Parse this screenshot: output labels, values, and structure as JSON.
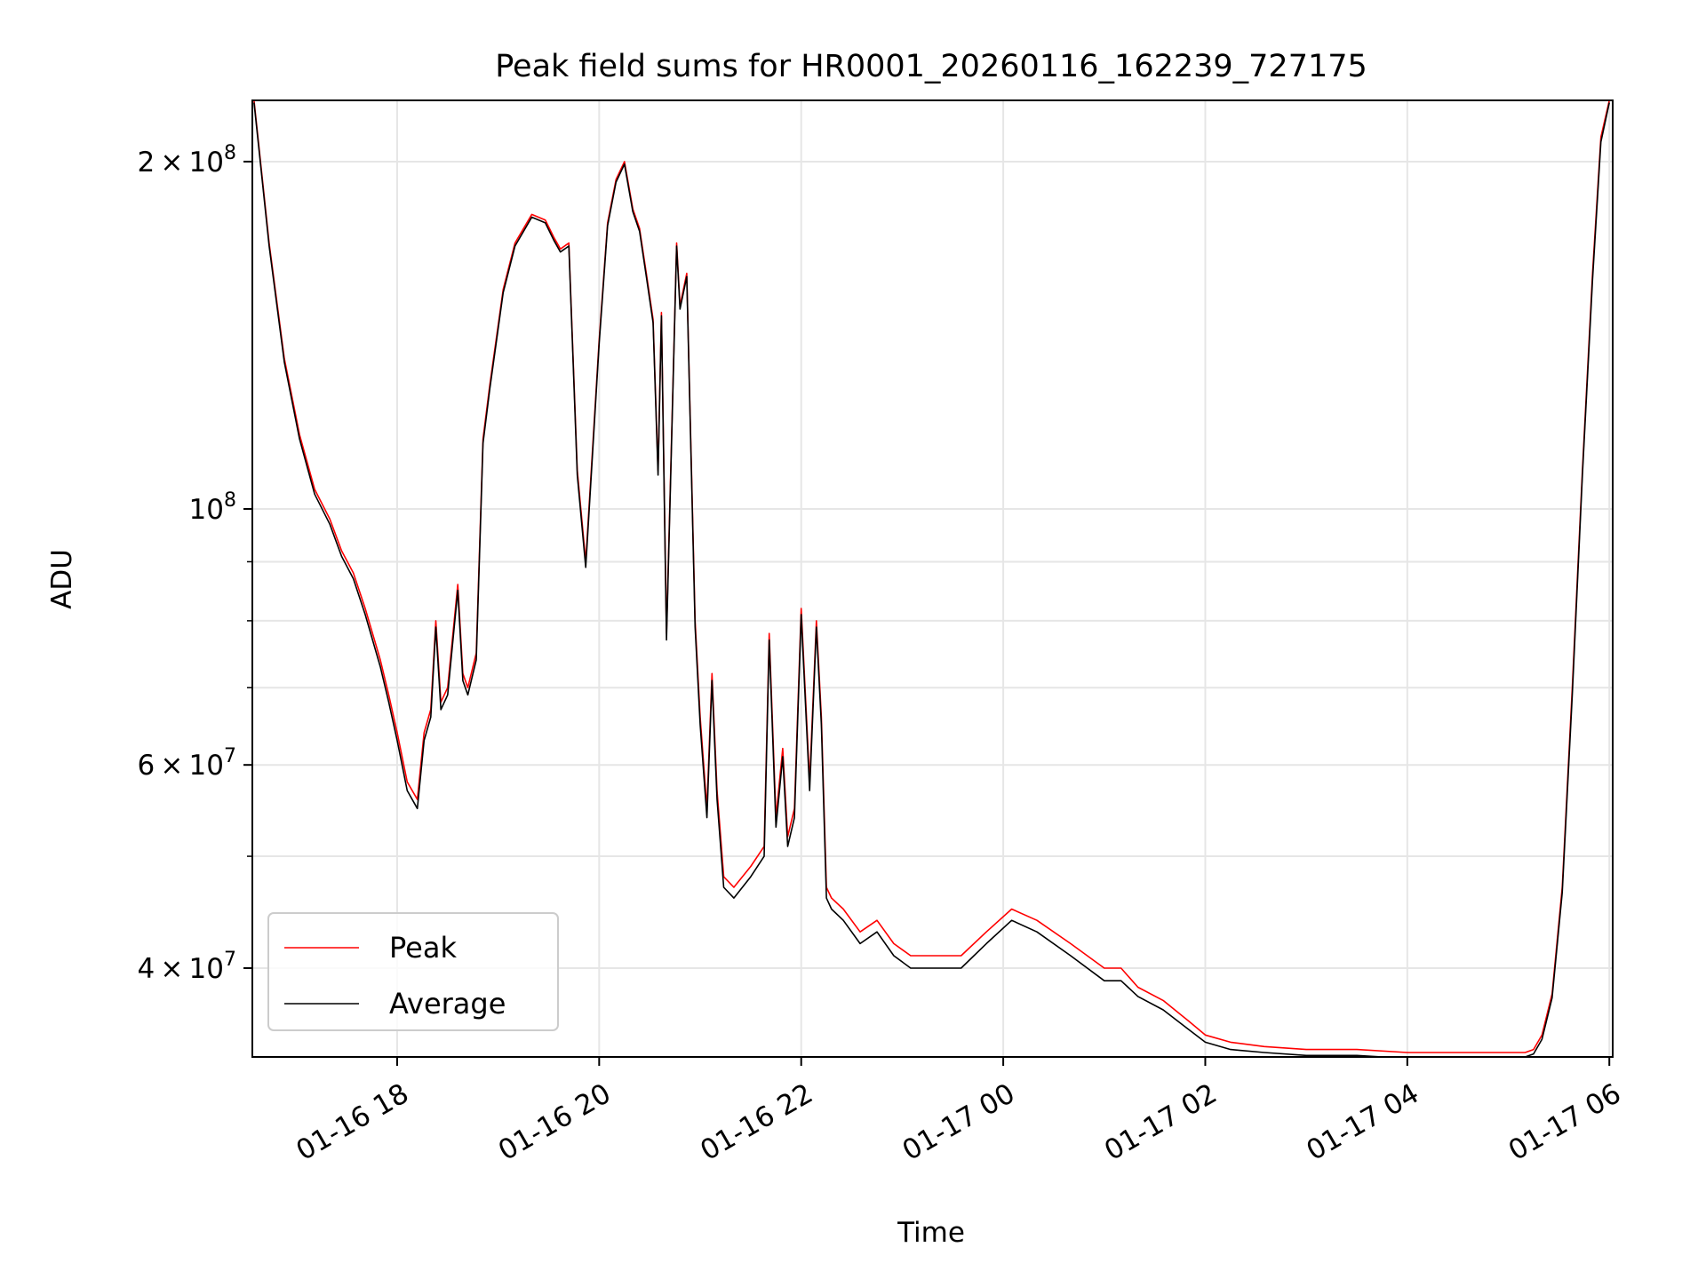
{
  "chart_data": {
    "type": "line",
    "title": "Peak field sums for HR0001_20260116_162239_727175",
    "xlabel": "Time",
    "ylabel": "ADU",
    "y_scale": "log",
    "grid": true,
    "legend_position": "lower-left",
    "xlim": [
      "2026-01-16 16:34",
      "2026-01-17 06:02"
    ],
    "ylim": [
      33500000,
      226000000
    ],
    "x_ticks": [
      "01-16 18",
      "01-16 20",
      "01-16 22",
      "01-17 00",
      "01-17 02",
      "01-17 04",
      "01-17 06"
    ],
    "x_tick_values": [
      "2026-01-16 18:00",
      "2026-01-16 20:00",
      "2026-01-16 22:00",
      "2026-01-17 00:00",
      "2026-01-17 02:00",
      "2026-01-17 04:00",
      "2026-01-17 06:00"
    ],
    "y_ticks": [
      {
        "value": 40000000,
        "mantissa": "4",
        "exp": "7"
      },
      {
        "value": 60000000,
        "mantissa": "6",
        "exp": "7"
      },
      {
        "value": 100000000,
        "mantissa": "",
        "exp": "8"
      },
      {
        "value": 200000000,
        "mantissa": "2",
        "exp": "8"
      }
    ],
    "y_minor_ticks": [
      50000000,
      70000000,
      80000000,
      90000000
    ],
    "series": [
      {
        "name": "Peak",
        "color": "#ff0000",
        "x": [
          "2026-01-16 16:35",
          "2026-01-16 16:44",
          "2026-01-16 16:53",
          "2026-01-16 17:02",
          "2026-01-16 17:11",
          "2026-01-16 17:20",
          "2026-01-16 17:27",
          "2026-01-16 17:34",
          "2026-01-16 17:41",
          "2026-01-16 17:50",
          "2026-01-16 17:55",
          "2026-01-16 18:00",
          "2026-01-16 18:06",
          "2026-01-16 18:12",
          "2026-01-16 18:16",
          "2026-01-16 18:20",
          "2026-01-16 18:23",
          "2026-01-16 18:26",
          "2026-01-16 18:30",
          "2026-01-16 18:36",
          "2026-01-16 18:39",
          "2026-01-16 18:42",
          "2026-01-16 18:47",
          "2026-01-16 18:51",
          "2026-01-16 18:55",
          "2026-01-16 19:03",
          "2026-01-16 19:10",
          "2026-01-16 19:20",
          "2026-01-16 19:28",
          "2026-01-16 19:33",
          "2026-01-16 19:37",
          "2026-01-16 19:42",
          "2026-01-16 19:47",
          "2026-01-16 19:52",
          "2026-01-16 20:00",
          "2026-01-16 20:05",
          "2026-01-16 20:10",
          "2026-01-16 20:15",
          "2026-01-16 20:20",
          "2026-01-16 20:24",
          "2026-01-16 20:28",
          "2026-01-16 20:32",
          "2026-01-16 20:35",
          "2026-01-16 20:37",
          "2026-01-16 20:40",
          "2026-01-16 20:46",
          "2026-01-16 20:48",
          "2026-01-16 20:52",
          "2026-01-16 20:57",
          "2026-01-16 21:00",
          "2026-01-16 21:04",
          "2026-01-16 21:07",
          "2026-01-16 21:10",
          "2026-01-16 21:14",
          "2026-01-16 21:20",
          "2026-01-16 21:30",
          "2026-01-16 21:38",
          "2026-01-16 21:41",
          "2026-01-16 21:45",
          "2026-01-16 21:49",
          "2026-01-16 21:52",
          "2026-01-16 21:56",
          "2026-01-16 22:00",
          "2026-01-16 22:05",
          "2026-01-16 22:09",
          "2026-01-16 22:12",
          "2026-01-16 22:15",
          "2026-01-16 22:18",
          "2026-01-16 22:25",
          "2026-01-16 22:35",
          "2026-01-16 22:45",
          "2026-01-16 22:55",
          "2026-01-16 23:05",
          "2026-01-16 23:20",
          "2026-01-16 23:35",
          "2026-01-16 23:50",
          "2026-01-17 00:05",
          "2026-01-17 00:20",
          "2026-01-17 00:40",
          "2026-01-17 01:00",
          "2026-01-17 01:10",
          "2026-01-17 01:20",
          "2026-01-17 01:35",
          "2026-01-17 01:50",
          "2026-01-17 02:00",
          "2026-01-17 02:15",
          "2026-01-17 02:35",
          "2026-01-17 03:00",
          "2026-01-17 03:30",
          "2026-01-17 04:00",
          "2026-01-17 04:30",
          "2026-01-17 05:00",
          "2026-01-17 05:10",
          "2026-01-17 05:15",
          "2026-01-17 05:20",
          "2026-01-17 05:26",
          "2026-01-17 05:32",
          "2026-01-17 05:38",
          "2026-01-17 05:44",
          "2026-01-17 05:50",
          "2026-01-17 05:55",
          "2026-01-17 06:00"
        ],
        "values": [
          226000000,
          170000000,
          135000000,
          116000000,
          104000000,
          98000000,
          92000000,
          88000000,
          82000000,
          74000000,
          69000000,
          64000000,
          58000000,
          56000000,
          64000000,
          67000000,
          80000000,
          68000000,
          70000000,
          86000000,
          72000000,
          70000000,
          75000000,
          115000000,
          128000000,
          155000000,
          170000000,
          180000000,
          178000000,
          172000000,
          168000000,
          170000000,
          108000000,
          90000000,
          140000000,
          177000000,
          193000000,
          200000000,
          182000000,
          175000000,
          160000000,
          146000000,
          108000000,
          148000000,
          78000000,
          170000000,
          150000000,
          160000000,
          80000000,
          66000000,
          55000000,
          72000000,
          57000000,
          48000000,
          47000000,
          49000000,
          51000000,
          78000000,
          54000000,
          62000000,
          52000000,
          55000000,
          82000000,
          58000000,
          80000000,
          66000000,
          47000000,
          46000000,
          45000000,
          43000000,
          44000000,
          42000000,
          41000000,
          41000000,
          41000000,
          43000000,
          45000000,
          44000000,
          42000000,
          40000000,
          40000000,
          38500000,
          37500000,
          36000000,
          35000000,
          34500000,
          34200000,
          34000000,
          34000000,
          33800000,
          33800000,
          33800000,
          33800000,
          34000000,
          35000000,
          38000000,
          47000000,
          70000000,
          108000000,
          160000000,
          210000000,
          226000000
        ]
      },
      {
        "name": "Average",
        "color": "#000000",
        "x": [
          "2026-01-16 16:35",
          "2026-01-16 16:44",
          "2026-01-16 16:53",
          "2026-01-16 17:02",
          "2026-01-16 17:11",
          "2026-01-16 17:20",
          "2026-01-16 17:27",
          "2026-01-16 17:34",
          "2026-01-16 17:41",
          "2026-01-16 17:50",
          "2026-01-16 17:55",
          "2026-01-16 18:00",
          "2026-01-16 18:06",
          "2026-01-16 18:12",
          "2026-01-16 18:16",
          "2026-01-16 18:20",
          "2026-01-16 18:23",
          "2026-01-16 18:26",
          "2026-01-16 18:30",
          "2026-01-16 18:36",
          "2026-01-16 18:39",
          "2026-01-16 18:42",
          "2026-01-16 18:47",
          "2026-01-16 18:51",
          "2026-01-16 18:55",
          "2026-01-16 19:03",
          "2026-01-16 19:10",
          "2026-01-16 19:20",
          "2026-01-16 19:28",
          "2026-01-16 19:33",
          "2026-01-16 19:37",
          "2026-01-16 19:42",
          "2026-01-16 19:47",
          "2026-01-16 19:52",
          "2026-01-16 20:00",
          "2026-01-16 20:05",
          "2026-01-16 20:10",
          "2026-01-16 20:15",
          "2026-01-16 20:20",
          "2026-01-16 20:24",
          "2026-01-16 20:28",
          "2026-01-16 20:32",
          "2026-01-16 20:35",
          "2026-01-16 20:37",
          "2026-01-16 20:40",
          "2026-01-16 20:46",
          "2026-01-16 20:48",
          "2026-01-16 20:52",
          "2026-01-16 20:57",
          "2026-01-16 21:00",
          "2026-01-16 21:04",
          "2026-01-16 21:07",
          "2026-01-16 21:10",
          "2026-01-16 21:14",
          "2026-01-16 21:20",
          "2026-01-16 21:30",
          "2026-01-16 21:38",
          "2026-01-16 21:41",
          "2026-01-16 21:45",
          "2026-01-16 21:49",
          "2026-01-16 21:52",
          "2026-01-16 21:56",
          "2026-01-16 22:00",
          "2026-01-16 22:05",
          "2026-01-16 22:09",
          "2026-01-16 22:12",
          "2026-01-16 22:15",
          "2026-01-16 22:18",
          "2026-01-16 22:25",
          "2026-01-16 22:35",
          "2026-01-16 22:45",
          "2026-01-16 22:55",
          "2026-01-16 23:05",
          "2026-01-16 23:20",
          "2026-01-16 23:35",
          "2026-01-16 23:50",
          "2026-01-17 00:05",
          "2026-01-17 00:20",
          "2026-01-17 00:40",
          "2026-01-17 01:00",
          "2026-01-17 01:10",
          "2026-01-17 01:20",
          "2026-01-17 01:35",
          "2026-01-17 01:50",
          "2026-01-17 02:00",
          "2026-01-17 02:15",
          "2026-01-17 02:35",
          "2026-01-17 03:00",
          "2026-01-17 03:30",
          "2026-01-17 04:00",
          "2026-01-17 04:30",
          "2026-01-17 05:00",
          "2026-01-17 05:10",
          "2026-01-17 05:15",
          "2026-01-17 05:20",
          "2026-01-17 05:26",
          "2026-01-17 05:32",
          "2026-01-17 05:38",
          "2026-01-17 05:44",
          "2026-01-17 05:50",
          "2026-01-17 05:55",
          "2026-01-17 06:00"
        ],
        "values": [
          225000000,
          169000000,
          134000000,
          115000000,
          103000000,
          97000000,
          91000000,
          87000000,
          81000000,
          73000000,
          68000000,
          63000000,
          57000000,
          55000000,
          63000000,
          66000000,
          79000000,
          67000000,
          69000000,
          85000000,
          71000000,
          69000000,
          74000000,
          114000000,
          127000000,
          154000000,
          169000000,
          179000000,
          177000000,
          171000000,
          167000000,
          169000000,
          107000000,
          89000000,
          139000000,
          176000000,
          192000000,
          199000000,
          181000000,
          174000000,
          159000000,
          145000000,
          107000000,
          147000000,
          77000000,
          169000000,
          149000000,
          159000000,
          79000000,
          65000000,
          54000000,
          71000000,
          56000000,
          47000000,
          46000000,
          48000000,
          50000000,
          77000000,
          53000000,
          61000000,
          51000000,
          54000000,
          81000000,
          57000000,
          79000000,
          65000000,
          46000000,
          45000000,
          44000000,
          42000000,
          43000000,
          41000000,
          40000000,
          40000000,
          40000000,
          42000000,
          44000000,
          43000000,
          41000000,
          39000000,
          39000000,
          37800000,
          36800000,
          35400000,
          34500000,
          34000000,
          33800000,
          33600000,
          33600000,
          33400000,
          33400000,
          33500000,
          33500000,
          33700000,
          34700000,
          37700000,
          46500000,
          69000000,
          107000000,
          158000000,
          208000000,
          225000000
        ]
      }
    ]
  }
}
